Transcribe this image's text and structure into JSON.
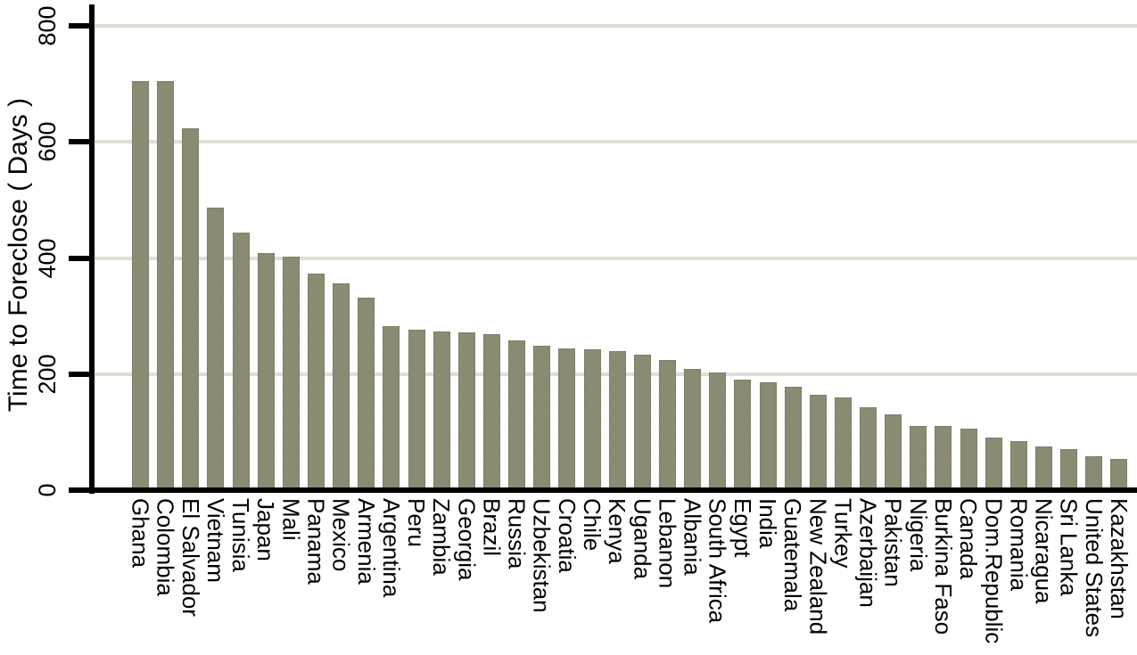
{
  "chart_data": {
    "type": "bar",
    "title": "",
    "xlabel": "",
    "ylabel": "Time to Foreclose ( Days )",
    "ylim": [
      0,
      800
    ],
    "yticks": [
      0,
      200,
      400,
      600,
      800
    ],
    "grid": "horizontal",
    "legend": "none",
    "bar_color": "#8a8b72",
    "bar_border_color": "#6f7059",
    "gridline_color": "#deded4",
    "axis_color": "#000000",
    "categories": [
      "Ghana",
      "Colombia",
      "El Salvador",
      "Vietnam",
      "Tunisia",
      "Japan",
      "Mali",
      "Panama",
      "Mexico",
      "Armenia",
      "Argentina",
      "Peru",
      "Zambia",
      "Georgia",
      "Brazil",
      "Russia",
      "Uzbekistan",
      "Croatia",
      "Chile",
      "Kenya",
      "Uganda",
      "Lebanon",
      "Albania",
      "South Africa",
      "Egypt",
      "India",
      "Guatemala",
      "New Zealand",
      "Turkey",
      "Azerbaijan",
      "Pakistan",
      "Nigeria",
      "Burkina Faso",
      "Canada",
      "Dom.Republic",
      "Romania",
      "Nicaragua",
      "Sri Lanka",
      "United States",
      "Kazakhstan"
    ],
    "values": [
      705,
      705,
      624,
      487,
      444,
      409,
      403,
      373,
      356,
      332,
      283,
      277,
      273,
      272,
      269,
      258,
      249,
      244,
      242,
      240,
      234,
      224,
      209,
      203,
      190,
      186,
      178,
      165,
      160,
      143,
      130,
      111,
      110,
      106,
      90,
      85,
      76,
      70,
      59,
      54
    ]
  }
}
